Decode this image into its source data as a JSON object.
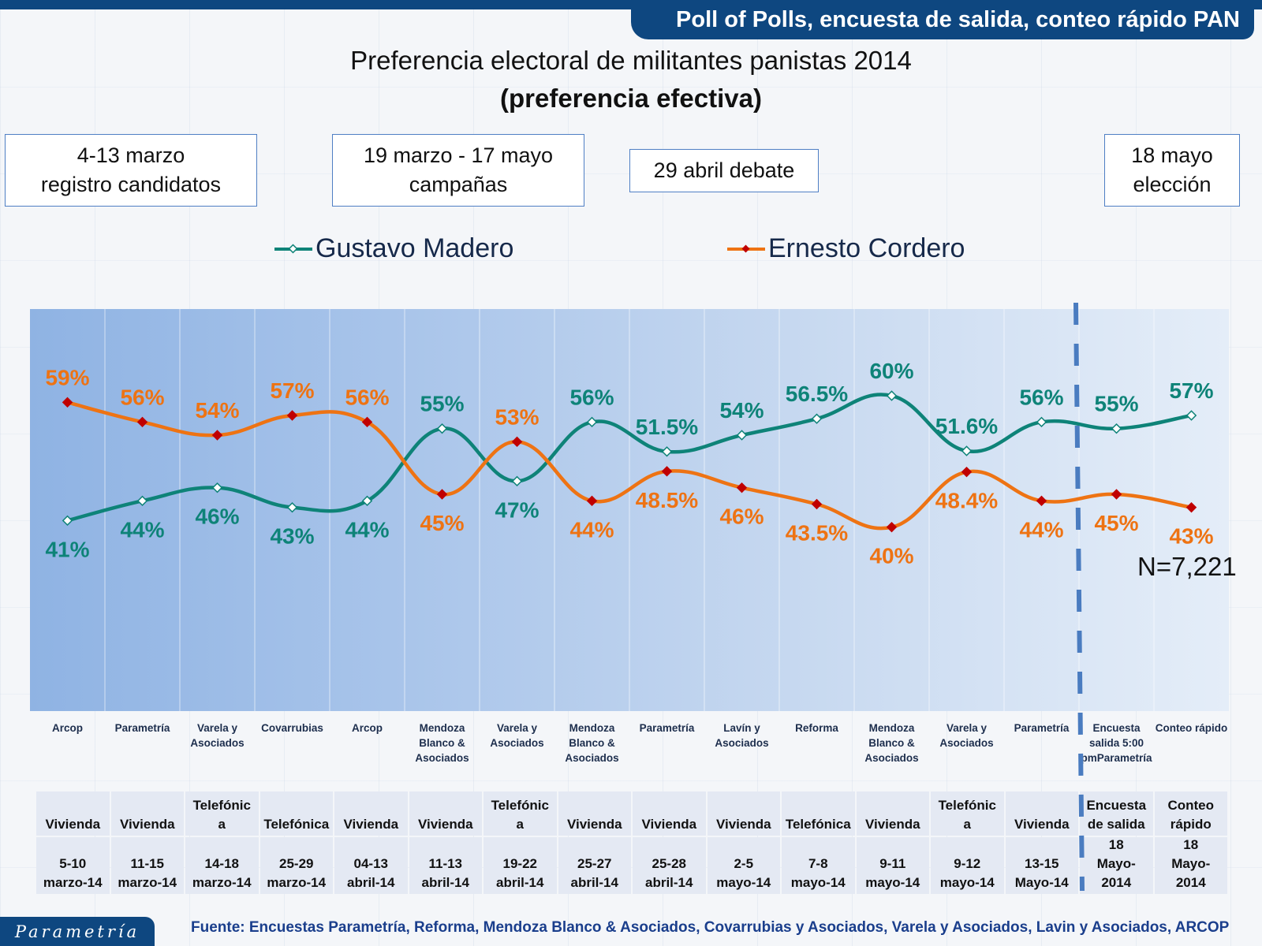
{
  "header": {
    "banner": "Poll of Polls, encuesta de salida, conteo rápido PAN",
    "title": "Preferencia electoral de militantes panistas 2014",
    "subtitle": "(preferencia efectiva)"
  },
  "events": [
    {
      "line1": "4-13 marzo",
      "line2": "registro candidatos"
    },
    {
      "line1": "19 marzo - 17 mayo",
      "line2": "campañas"
    },
    {
      "line1": "29 abril debate",
      "line2": ""
    },
    {
      "line1": "18 mayo",
      "line2": "elección"
    }
  ],
  "sample_size": "N=7,221",
  "footer": {
    "logo": "Parametría",
    "source": "Fuente: Encuestas Parametría, Reforma, Mendoza Blanco & Asociados, Covarrubias y Asociados, Varela y Asociados, Lavin y Asociados, ARCOP"
  },
  "colors": {
    "madero": "#0e8378",
    "cordero": "#ee7313",
    "cordero_marker": "#c00000",
    "divider": "#4a7cc0",
    "brand": "#0e4780"
  },
  "chart_data": {
    "type": "line",
    "title": "Preferencia electoral de militantes panistas 2014",
    "subtitle": "(preferencia efectiva)",
    "xlabel": "",
    "ylabel": "",
    "ylim": [
      0,
      70
    ],
    "grid": "vertical",
    "legend": "top",
    "categories": [
      "Arcop",
      "Parametría",
      "Varela y Asociados",
      "Covarrubias",
      "Arcop",
      "Mendoza Blanco & Asociados",
      "Varela y Asociados",
      "Mendoza Blanco & Asociados",
      "Parametría",
      "Lavín y Asociados",
      "Reforma",
      "Mendoza Blanco & Asociados",
      "Varela y Asociados",
      "Parametría",
      "Encuesta salida 5:00 pmParametría",
      "Conteo rápido"
    ],
    "series": [
      {
        "name": "Gustavo Madero",
        "values": [
          41,
          44,
          46,
          43,
          44,
          55,
          47,
          56,
          51.5,
          54,
          56.5,
          60,
          51.6,
          56,
          55,
          57
        ],
        "labels": [
          "41%",
          "44%",
          "46%",
          "43%",
          "44%",
          "55%",
          "47%",
          "56%",
          "51.5%",
          "54%",
          "56.5%",
          "60%",
          "51.6%",
          "56%",
          "55%",
          "57%"
        ]
      },
      {
        "name": "Ernesto Cordero",
        "values": [
          59,
          56,
          54,
          57,
          56,
          45,
          53,
          44,
          48.5,
          46,
          43.5,
          40,
          48.4,
          44,
          45,
          43
        ],
        "labels": [
          "59%",
          "56%",
          "54%",
          "57%",
          "56%",
          "45%",
          "53%",
          "44%",
          "48.5%",
          "46%",
          "43.5%",
          "40%",
          "48.4%",
          "44%",
          "45%",
          "43%"
        ]
      }
    ],
    "x_labels": [
      [
        "Arcop"
      ],
      [
        "Parametría"
      ],
      [
        "Varela y",
        "Asociados"
      ],
      [
        "Covarrubias"
      ],
      [
        "Arcop"
      ],
      [
        "Mendoza",
        "Blanco &",
        "Asociados"
      ],
      [
        "Varela y",
        "Asociados"
      ],
      [
        "Mendoza",
        "Blanco &",
        "Asociados"
      ],
      [
        "Parametría"
      ],
      [
        "Lavín y",
        "Asociados"
      ],
      [
        "Reforma"
      ],
      [
        "Mendoza",
        "Blanco &",
        "Asociados"
      ],
      [
        "Varela y",
        "Asociados"
      ],
      [
        "Parametría"
      ],
      [
        "Encuesta",
        "salida 5:00",
        "pmParametría"
      ],
      [
        "Conteo rápido"
      ]
    ],
    "divider_after_index": 13,
    "table": {
      "method": [
        [
          "Vivienda"
        ],
        [
          "Vivienda"
        ],
        [
          "Telefónic",
          "a"
        ],
        [
          "Telefónica"
        ],
        [
          "Vivienda"
        ],
        [
          "Vivienda"
        ],
        [
          "Telefónic",
          "a"
        ],
        [
          "Vivienda"
        ],
        [
          "Vivienda"
        ],
        [
          "Vivienda"
        ],
        [
          "Telefónica"
        ],
        [
          "Vivienda"
        ],
        [
          "Telefónic",
          "a"
        ],
        [
          "Vivienda"
        ],
        [
          "Encuesta",
          "de salida"
        ],
        [
          "Conteo",
          "rápido"
        ]
      ],
      "dates": [
        [
          "5-10",
          "marzo-14"
        ],
        [
          "11-15",
          "marzo-14"
        ],
        [
          "14-18",
          "marzo-14"
        ],
        [
          "25-29",
          "marzo-14"
        ],
        [
          "04-13",
          "abril-14"
        ],
        [
          "11-13",
          "abril-14"
        ],
        [
          "19-22",
          "abril-14"
        ],
        [
          "25-27",
          "abril-14"
        ],
        [
          "25-28",
          "abril-14"
        ],
        [
          "2-5",
          "mayo-14"
        ],
        [
          "7-8",
          "mayo-14"
        ],
        [
          "9-11",
          "mayo-14"
        ],
        [
          "9-12",
          "mayo-14"
        ],
        [
          "13-15",
          "Mayo-14"
        ],
        [
          "18",
          "Mayo-",
          "2014"
        ],
        [
          "18",
          "Mayo-",
          "2014"
        ]
      ]
    }
  }
}
